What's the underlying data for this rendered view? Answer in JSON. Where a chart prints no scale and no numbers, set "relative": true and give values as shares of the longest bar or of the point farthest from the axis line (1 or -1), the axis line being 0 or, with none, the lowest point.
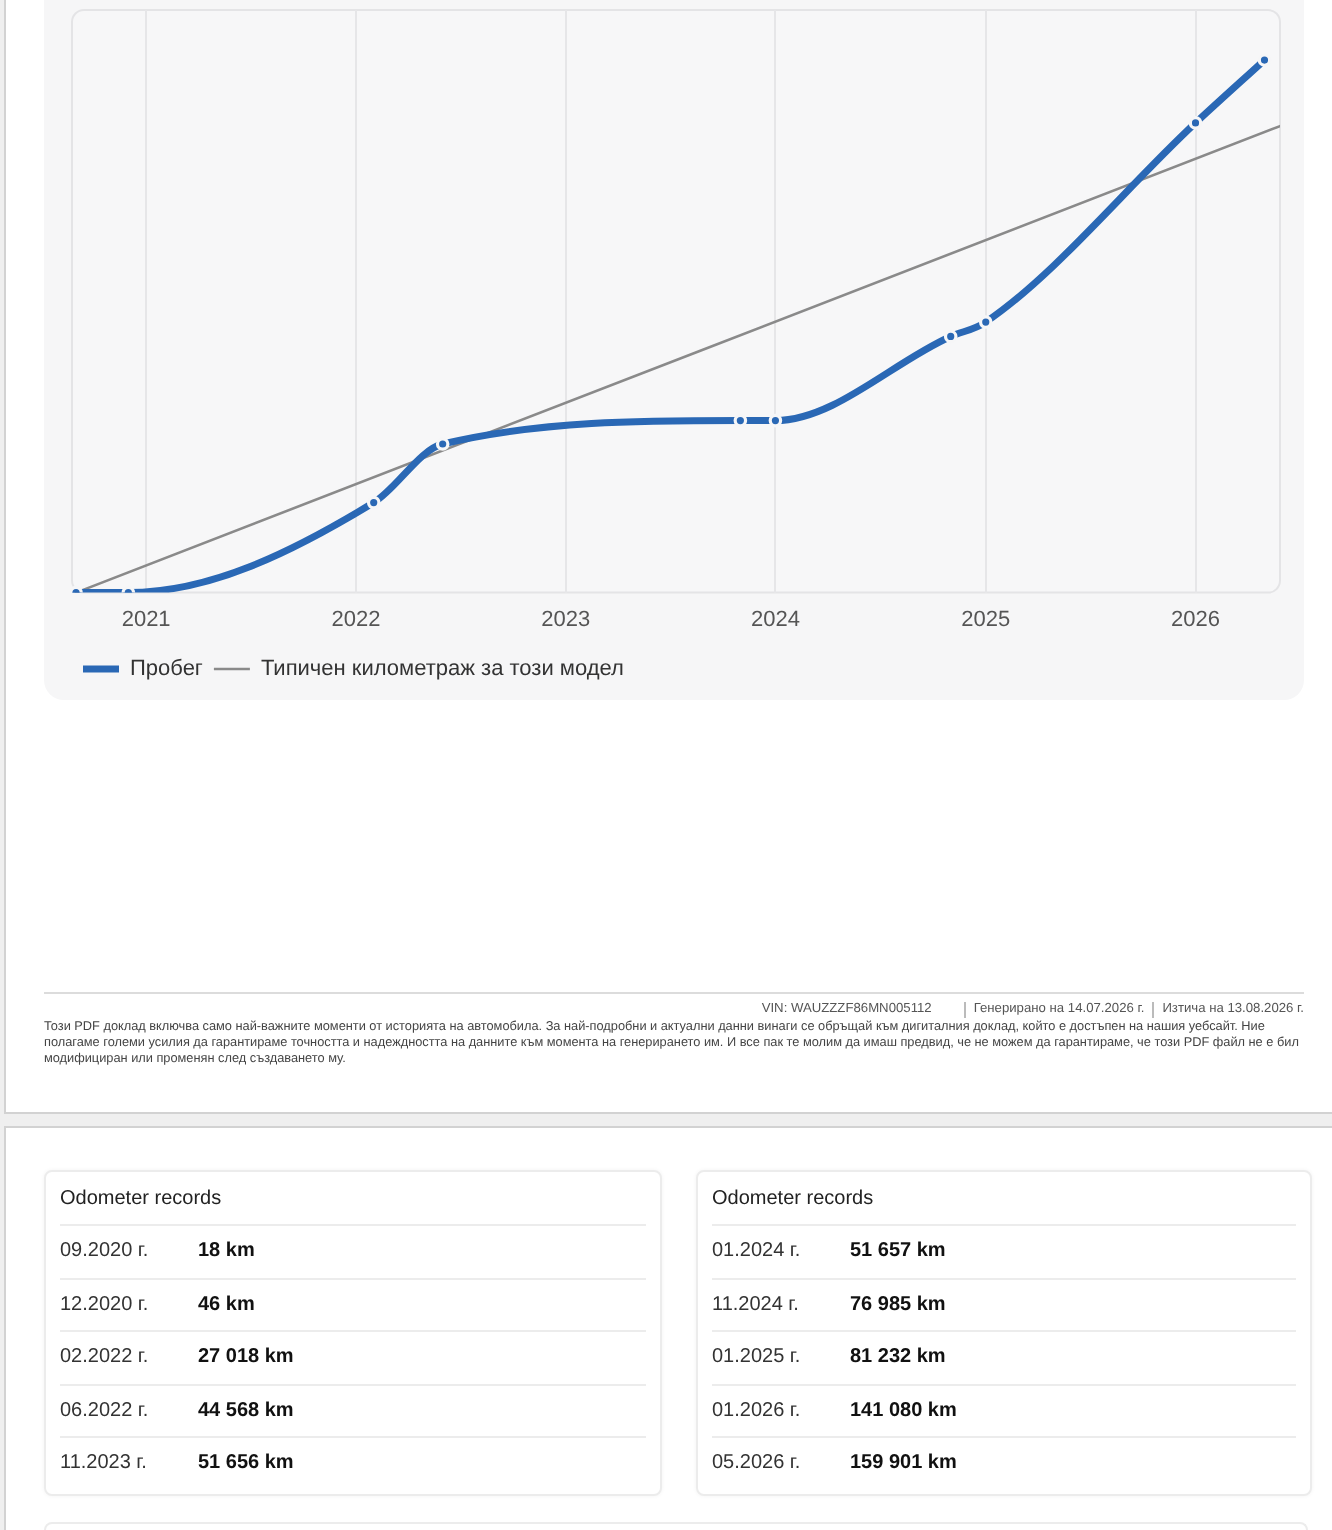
{
  "chart_data": [
    {
      "type": "line",
      "relative": true,
      "xlim": [
        "2020-08-25",
        "2026-05-28"
      ],
      "xticks": [
        "2021",
        "2022",
        "2023",
        "2024",
        "2025",
        "2026"
      ],
      "tick_labels": "x",
      "grid": "x",
      "legend": "bottom left",
      "marker": "circle",
      "series": [
        {
          "name": "Пробег",
          "color": "#2a68b5",
          "x": [
            "2020-09",
            "2020-12",
            "2022-02",
            "2022-06",
            "2023-11",
            "2024-01",
            "2024-11",
            "2025-01",
            "2026-01",
            "2026-05"
          ],
          "values": [
            0,
            0,
            0.169,
            0.279,
            0.323,
            0.323,
            0.481,
            0.508,
            0.882,
            1
          ]
        },
        {
          "name": "Типичен километраж за този модел",
          "color": "#8a8a8a",
          "x": [
            "2020-09",
            "2026-05-28"
          ],
          "values": [
            0,
            0.876
          ],
          "marker": "none"
        }
      ],
      "annotations": [
        "VIN: WAUZZZF86MN005112",
        "Генерирано на 14.07.2026 г.",
        "Изтича на 13.08.2026 г.",
        "Този PDF доклад включва само най-важните моменти от историята на автомобила. За най-подробни и актуални данни винаги се обръщай към дигиталния доклад, който е достъпен на нашия уебсайт. Ние полагаме големи усилия да гарантираме точността и надеждността на данните към момента на генерирането им. И все пак те молим да имаш предвид, че не можем да гарантираме, че този PDF файл не е бил модифициран или променян след създаването му."
      ]
    },
    {
      "type": "other",
      "title": "Odometer records",
      "annotations": [
        "09.2020 г.",
        "18 km",
        "12.2020 г.",
        "46 km",
        "02.2022 г.",
        "27 018 km",
        "06.2022 г.",
        "44 568 km",
        "11.2023 г.",
        "51 656 km"
      ]
    },
    {
      "type": "other",
      "title": "Odometer records",
      "annotations": [
        "01.2024 г.",
        "51 657 km",
        "11.2024 г.",
        "76 985 km",
        "01.2025 г.",
        "81 232 km",
        "01.2026 г.",
        "141 080 km",
        "05.2026 г.",
        "159 901 km"
      ]
    }
  ]
}
